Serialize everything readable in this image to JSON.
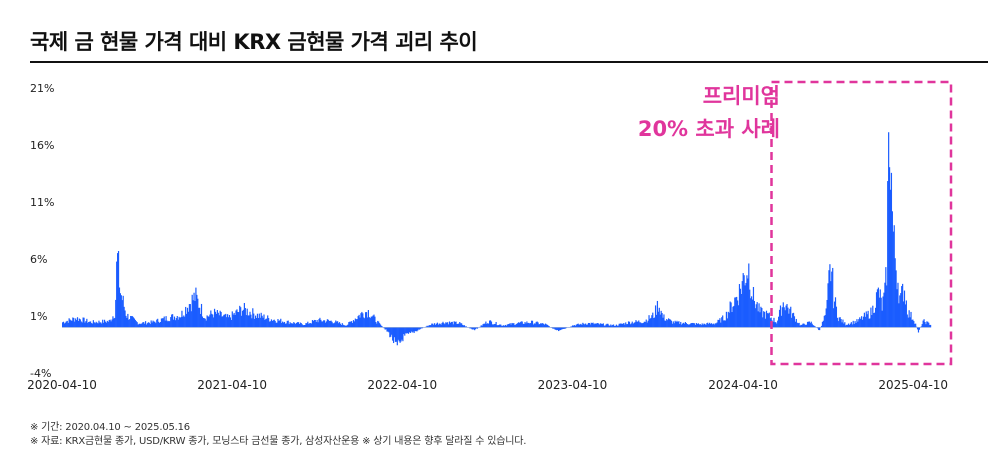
{
  "title": "국제 금 현물 가격 대비 KRX 금현물 가격 괴리 추이",
  "annotation": {
    "line1": "프리미엄",
    "line2": "20% 초과 사례",
    "color": "#e0359c"
  },
  "footnotes": {
    "period": "※ 기간: 2020.04.10 ~ 2025.05.16",
    "source": "※ 자료: KRX금현물 종가, USD/KRW 종가, 모닝스타 금선물 종가, 삼성자산운용 ※ 상기 내용은 향후 달라질 수 있습니다."
  },
  "chart_data": {
    "type": "area",
    "series_color": "#1a5cff",
    "y_ticks": [
      "21%",
      "16%",
      "11%",
      "6%",
      "1%",
      "-4%"
    ],
    "y_tick_values": [
      21,
      16,
      11,
      6,
      1,
      -4
    ],
    "ylim": [
      -4,
      21
    ],
    "x_ticks": [
      "2020-04-10",
      "2021-04-10",
      "2022-04-10",
      "2023-04-10",
      "2024-04-10",
      "2025-04-10"
    ],
    "xlim": [
      "2020-04-10",
      "2025-05-16"
    ],
    "grid": false,
    "highlight_range": [
      "2024-06-10",
      "2025-05-16"
    ],
    "points": [
      [
        "2020-04-10",
        0.5
      ],
      [
        "2020-05-10",
        0.9
      ],
      [
        "2020-06-10",
        0.5
      ],
      [
        "2020-07-20",
        0.6
      ],
      [
        "2020-08-01",
        1.5
      ],
      [
        "2020-08-05",
        7.0
      ],
      [
        "2020-08-12",
        3.5
      ],
      [
        "2020-08-25",
        1.2
      ],
      [
        "2020-09-20",
        0.4
      ],
      [
        "2020-10-20",
        0.5
      ],
      [
        "2020-11-20",
        0.9
      ],
      [
        "2020-12-20",
        1.2
      ],
      [
        "2021-01-10",
        2.5
      ],
      [
        "2021-01-20",
        3.0
      ],
      [
        "2021-02-10",
        1.0
      ],
      [
        "2021-03-01",
        1.4
      ],
      [
        "2021-04-01",
        0.9
      ],
      [
        "2021-05-01",
        1.8
      ],
      [
        "2021-06-01",
        1.2
      ],
      [
        "2021-07-01",
        0.8
      ],
      [
        "2021-08-10",
        0.5
      ],
      [
        "2021-09-10",
        0.3
      ],
      [
        "2021-10-10",
        0.7
      ],
      [
        "2021-11-10",
        0.6
      ],
      [
        "2021-12-10",
        0.2
      ],
      [
        "2022-01-10",
        1.3
      ],
      [
        "2022-01-25",
        1.6
      ],
      [
        "2022-02-15",
        0.5
      ],
      [
        "2022-03-10",
        -0.5
      ],
      [
        "2022-03-20",
        -1.2
      ],
      [
        "2022-03-28",
        -2.1
      ],
      [
        "2022-04-10",
        -1.0
      ],
      [
        "2022-05-10",
        -0.3
      ],
      [
        "2022-06-10",
        0.3
      ],
      [
        "2022-07-10",
        0.5
      ],
      [
        "2022-08-10",
        0.4
      ],
      [
        "2022-09-10",
        -0.3
      ],
      [
        "2022-10-10",
        0.6
      ],
      [
        "2022-11-10",
        0.2
      ],
      [
        "2022-12-10",
        0.4
      ],
      [
        "2023-01-10",
        0.5
      ],
      [
        "2023-02-10",
        0.3
      ],
      [
        "2023-03-10",
        -0.4
      ],
      [
        "2023-04-10",
        0.2
      ],
      [
        "2023-05-10",
        0.4
      ],
      [
        "2023-06-10",
        0.3
      ],
      [
        "2023-07-10",
        0.2
      ],
      [
        "2023-08-10",
        0.5
      ],
      [
        "2023-09-10",
        0.6
      ],
      [
        "2023-10-01",
        1.2
      ],
      [
        "2023-10-10",
        2.3
      ],
      [
        "2023-10-20",
        1.0
      ],
      [
        "2023-11-10",
        0.5
      ],
      [
        "2023-12-10",
        0.4
      ],
      [
        "2024-01-10",
        0.3
      ],
      [
        "2024-02-10",
        0.4
      ],
      [
        "2024-03-01",
        1.0
      ],
      [
        "2024-03-20",
        2.5
      ],
      [
        "2024-04-01",
        3.5
      ],
      [
        "2024-04-10",
        4.8
      ],
      [
        "2024-04-20",
        6.0
      ],
      [
        "2024-04-30",
        3.0
      ],
      [
        "2024-05-15",
        1.5
      ],
      [
        "2024-06-01",
        1.2
      ],
      [
        "2024-06-20",
        0.5
      ],
      [
        "2024-07-05",
        2.5
      ],
      [
        "2024-07-20",
        1.5
      ],
      [
        "2024-08-10",
        0.2
      ],
      [
        "2024-09-01",
        0.5
      ],
      [
        "2024-09-20",
        -0.3
      ],
      [
        "2024-10-05",
        1.5
      ],
      [
        "2024-10-10",
        4.5
      ],
      [
        "2024-10-15",
        6.0
      ],
      [
        "2024-10-20",
        3.0
      ],
      [
        "2024-10-30",
        1.0
      ],
      [
        "2024-11-15",
        0.3
      ],
      [
        "2024-12-10",
        0.6
      ],
      [
        "2025-01-10",
        1.5
      ],
      [
        "2025-01-25",
        3.5
      ],
      [
        "2025-02-01",
        2.0
      ],
      [
        "2025-02-08",
        3.5
      ],
      [
        "2025-02-11",
        6.0
      ],
      [
        "2025-02-13",
        12.0
      ],
      [
        "2025-02-15",
        16.0
      ],
      [
        "2025-02-17",
        20.0
      ],
      [
        "2025-02-19",
        18.5
      ],
      [
        "2025-02-22",
        12.0
      ],
      [
        "2025-02-26",
        8.0
      ],
      [
        "2025-03-05",
        5.5
      ],
      [
        "2025-03-12",
        2.5
      ],
      [
        "2025-03-20",
        4.0
      ],
      [
        "2025-03-28",
        1.5
      ],
      [
        "2025-04-10",
        0.8
      ],
      [
        "2025-04-20",
        -0.4
      ],
      [
        "2025-05-01",
        0.6
      ],
      [
        "2025-05-16",
        0.3
      ]
    ]
  }
}
